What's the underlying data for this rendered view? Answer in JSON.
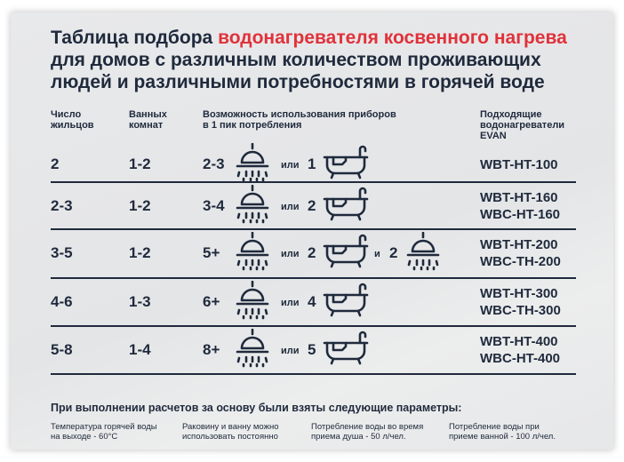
{
  "title": {
    "part1": "Таблица подбора ",
    "highlight": "водонагревателя косвенного нагрева",
    "line2": "для домов с различным количеством проживающих",
    "line3": "людей и различными потребностями в горячей воде",
    "highlight_color": "#e0323a"
  },
  "headers": {
    "residents": [
      "Число",
      "жильцов"
    ],
    "bathrooms": [
      "Ванных",
      "комнат"
    ],
    "devices": [
      "Возможность использования приборов",
      "в 1 пик потребления"
    ],
    "heaters": [
      "Подходящие",
      "водонагреватели",
      "EVAN"
    ]
  },
  "connector_or": "или",
  "connector_and": "и",
  "rows": [
    {
      "residents": "2",
      "bathrooms": "1-2",
      "showers": "2-3",
      "baths": "1",
      "models": [
        "WBT-HT-100"
      ]
    },
    {
      "residents": "2-3",
      "bathrooms": "1-2",
      "showers": "3-4",
      "baths": "2",
      "models": [
        "WBT-HT-160",
        "WBC-HT-160"
      ]
    },
    {
      "residents": "3-5",
      "bathrooms": "1-2",
      "showers": "5+",
      "baths": "2",
      "extra_showers": "2",
      "models": [
        "WBT-HT-200",
        "WBC-TH-200"
      ]
    },
    {
      "residents": "4-6",
      "bathrooms": "1-3",
      "showers": "6+",
      "baths": "4",
      "models": [
        "WBT-HT-300",
        "WBC-TH-300"
      ]
    },
    {
      "residents": "5-8",
      "bathrooms": "1-4",
      "showers": "8+",
      "baths": "5",
      "models": [
        "WBT-HT-400",
        "WBC-HT-400"
      ]
    }
  ],
  "footer": {
    "heading": "При выполнении расчетов за основу были взяты следующие параметры:",
    "items": [
      [
        "Температура горячей воды",
        "на выходе - 60°С"
      ],
      [
        "Раковину и ванну можно",
        "использовать постоянно"
      ],
      [
        "Потребление воды во время",
        "приема душа - 50 л/чел."
      ],
      [
        "Потребление воды при",
        "приеме ванной - 100 л/чел."
      ]
    ]
  },
  "icons": {
    "shower": "shower-icon",
    "bath": "bathtub-icon"
  }
}
